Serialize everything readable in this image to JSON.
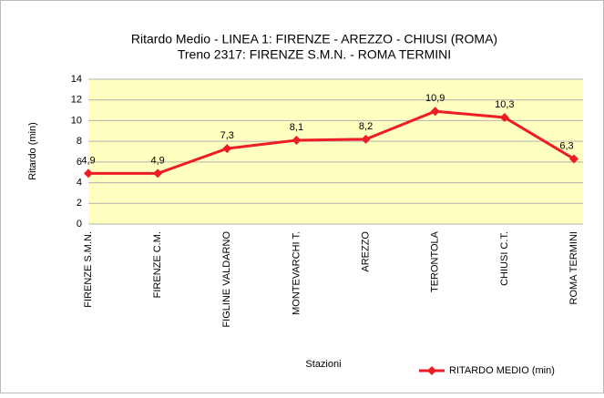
{
  "chart_data": {
    "type": "line",
    "title": "Ritardo Medio - LINEA 1: FIRENZE - AREZZO - CHIUSI (ROMA)",
    "subtitle": "Treno 2317: FIRENZE S.M.N. - ROMA TERMINI",
    "x_label": "Stazioni",
    "y_label": "Ritardo (min)",
    "categories": [
      "FIRENZE S.M.N.",
      "FIRENZE C.M.",
      "FIGLINE VALDARNO",
      "MONTEVARCHI T.",
      "AREZZO",
      "TERONTOLA",
      "CHIUSI C.T.",
      "ROMA TERMINI"
    ],
    "series": [
      {
        "name": "RITARDO MEDIO (min)",
        "color": "#ee1c25",
        "values": [
          4.9,
          4.9,
          7.3,
          8.1,
          8.2,
          10.9,
          10.3,
          6.3
        ],
        "value_labels": [
          "4,9",
          "4,9",
          "7,3",
          "8,1",
          "8,2",
          "10,9",
          "10,3",
          "6,3"
        ]
      }
    ],
    "ylim": [
      0,
      14
    ],
    "yticks": [
      0,
      2,
      4,
      6,
      8,
      10,
      12,
      14
    ],
    "grid": true,
    "legend": "bottom-right"
  }
}
